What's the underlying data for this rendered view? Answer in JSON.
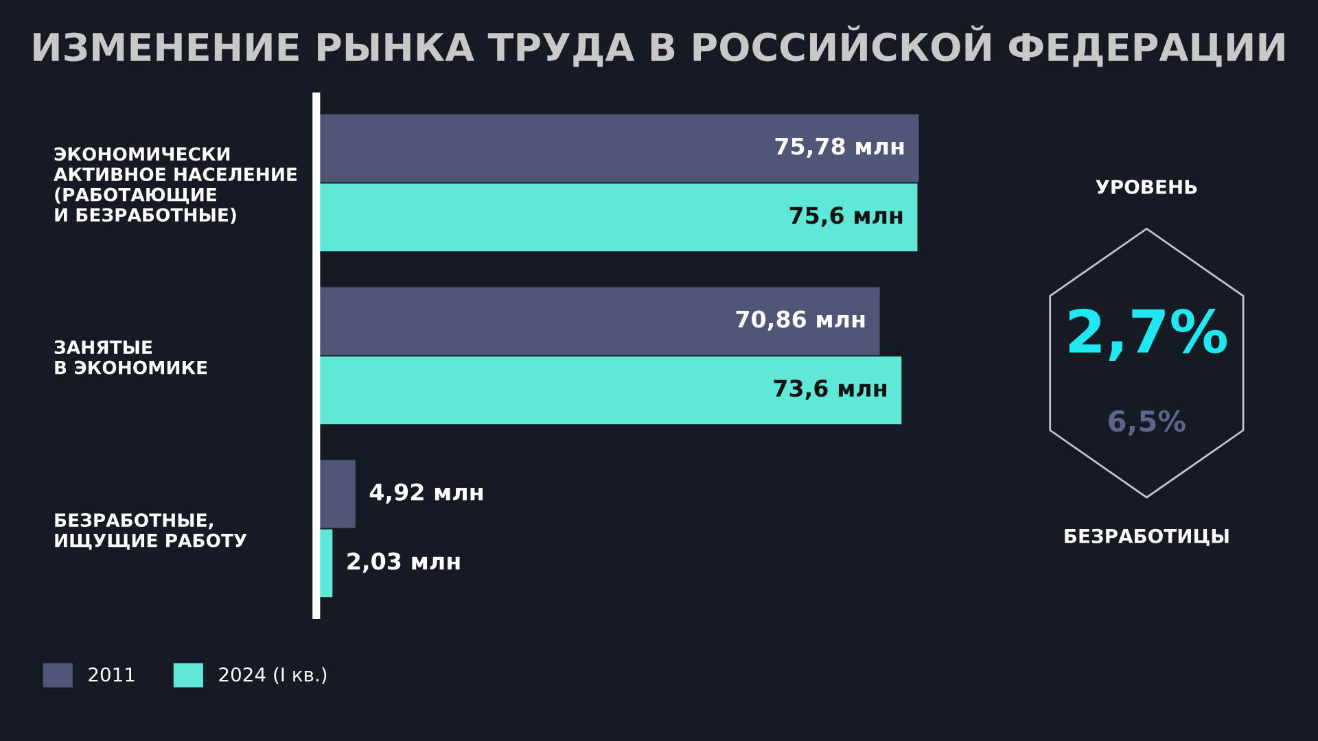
{
  "chart_data": [
    {
      "type": "bar",
      "orientation": "horizontal",
      "title": "ИЗМЕНЕНИЕ РЫНКА ТРУДА В РОССИЙСКОЙ ФЕДЕРАЦИИ",
      "categories": [
        "ЭКОНОМИЧЕСКИ\nАКТИВНОЕ НАСЕЛЕНИЕ\n(РАБОТАЮЩИЕ\nИ БЕЗРАБОТНЫЕ)",
        "ЗАНЯТЫЕ\nВ ЭКОНОМИКЕ",
        "БЕЗРАБОТНЫЕ,\nИЩУЩИЕ РАБОТУ"
      ],
      "series": [
        {
          "name": "2011",
          "color": "#4f5677",
          "values": [
            75.78,
            70.86,
            4.92
          ],
          "value_labels": [
            "75,78 млн",
            "70,86 млн",
            "4,92 млн"
          ]
        },
        {
          "name": "2024 (I кв.)",
          "color": "#5ee8d8",
          "values": [
            75.6,
            73.6,
            2.03
          ],
          "value_labels": [
            "75,6 млн",
            "73,6 млн",
            "2,03 млн"
          ]
        }
      ],
      "tick_labels": "y",
      "legend": "bottom left",
      "grid": false
    },
    {
      "type": "other",
      "annotations": [
        "УРОВЕНЬ",
        "2,7%",
        "6,5%",
        "БЕЗРАБОТИЦЫ"
      ],
      "colors": [
        "#ffffff",
        "#1ee8f0",
        "#5d6688",
        "#ffffff"
      ]
    }
  ]
}
